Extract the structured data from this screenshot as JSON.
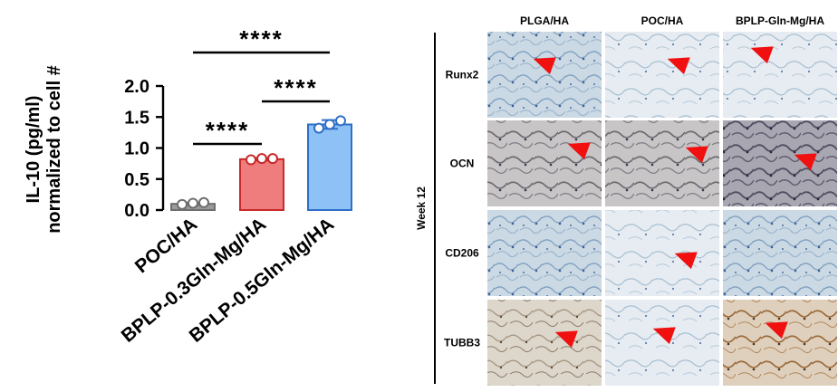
{
  "chart_data": {
    "type": "bar",
    "ylabel_lines": [
      "IL-10 (pg/ml)",
      "normalized to cell #"
    ],
    "categories": [
      "POC/HA",
      "BPLP-0.3Gln-Mg/HA",
      "BPLP-0.5Gln-Mg/HA"
    ],
    "values": [
      0.1,
      0.82,
      1.38
    ],
    "replicates": [
      [
        0.09,
        0.11,
        0.12
      ],
      [
        0.81,
        0.83,
        0.83
      ],
      [
        1.32,
        1.38,
        1.44
      ]
    ],
    "errors": [
      0.02,
      0.02,
      0.07
    ],
    "bar_colors": [
      "#9a9a9a",
      "#f07d7d",
      "#8ec1f5"
    ],
    "bar_edge_colors": [
      "#6e6e6e",
      "#c72a2a",
      "#2f6fc8"
    ],
    "ylim": [
      0,
      2.0
    ],
    "yticks": [
      "0.0",
      "0.5",
      "1.0",
      "1.5",
      "2.0"
    ],
    "significance": [
      {
        "from": 0,
        "to": 2,
        "label": "****"
      },
      {
        "from": 1,
        "to": 2,
        "label": "****"
      },
      {
        "from": 0,
        "to": 1,
        "label": "****"
      }
    ]
  },
  "panel": {
    "columns": [
      "PLGA/HA",
      "POC/HA",
      "BPLP-Gln-Mg/HA"
    ],
    "rows": [
      "Runx2",
      "OCN",
      "CD206",
      "TUBB3"
    ],
    "timepoint": "Week 12"
  }
}
